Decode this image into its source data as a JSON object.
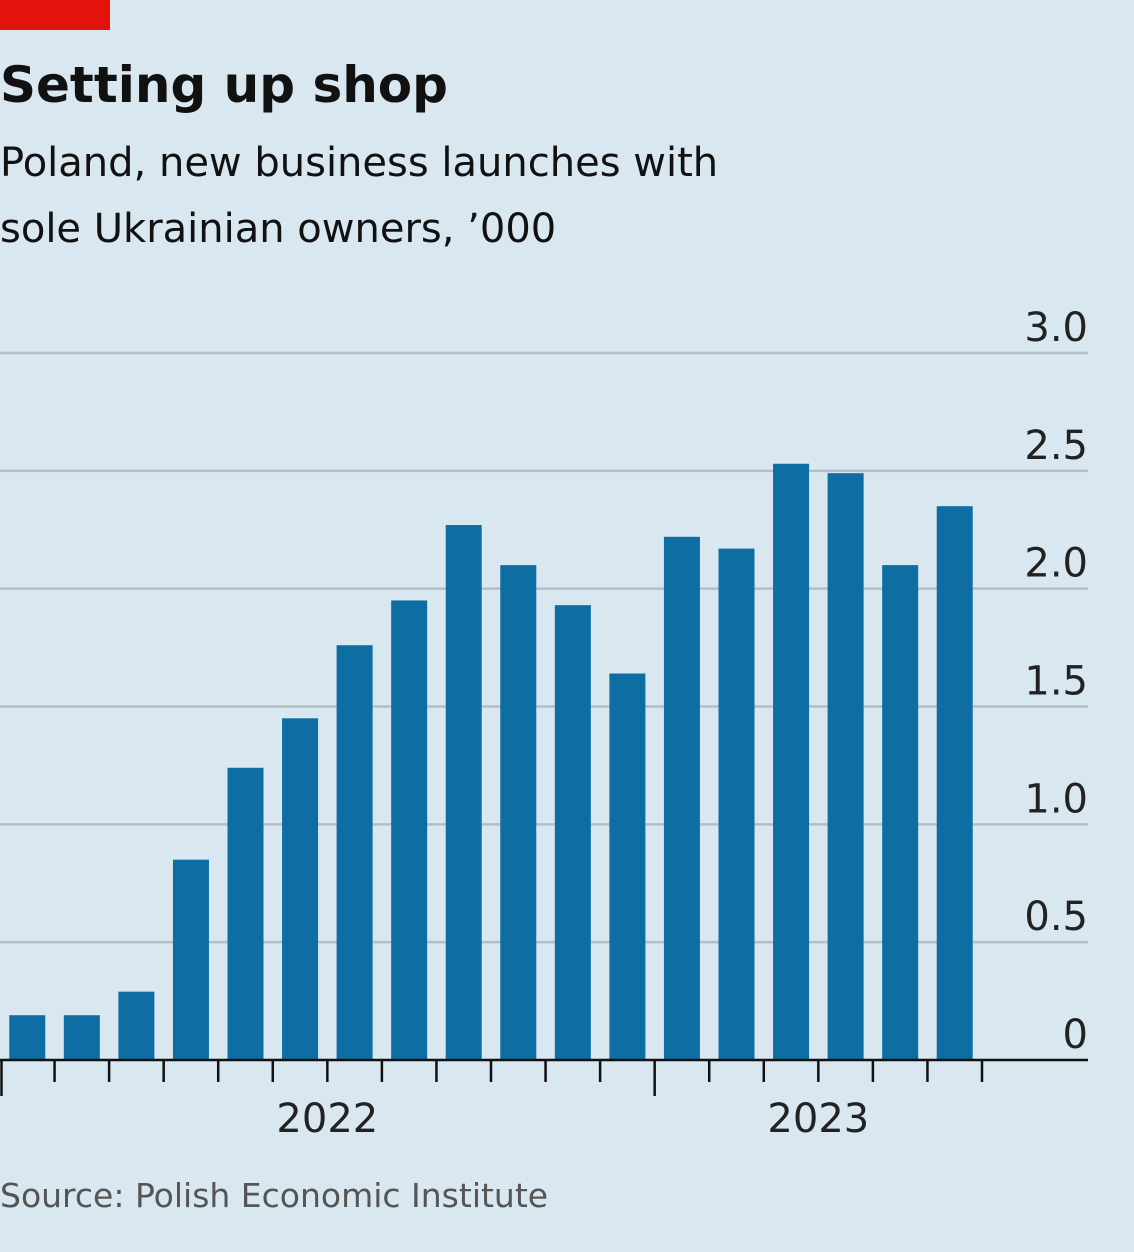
{
  "chart_data": {
    "type": "bar",
    "title": "Setting up shop",
    "subtitle": [
      "Poland, new business launches with",
      "sole Ukrainian owners, ’000"
    ],
    "source": "Source: Polish Economic Institute",
    "categories": [
      null,
      null,
      null,
      null,
      null,
      null,
      null,
      null,
      null,
      null,
      null,
      null,
      null,
      null,
      null,
      null,
      null,
      null
    ],
    "year_labels": [
      "2022",
      "2023"
    ],
    "values": [
      0.19,
      0.19,
      0.29,
      0.85,
      1.24,
      1.45,
      1.76,
      1.95,
      2.27,
      2.1,
      1.93,
      1.64,
      2.22,
      2.17,
      2.53,
      2.49,
      2.1,
      2.35
    ],
    "color": "#0e6ea3",
    "ylim": [
      0,
      3
    ],
    "yticks": [
      0,
      0.5,
      {
        "value": 1,
        "label": "1.0"
      },
      1.5,
      {
        "value": 2,
        "label": "2.0"
      },
      2.5,
      {
        "value": 3,
        "label": "3.0"
      }
    ],
    "grid": true
  }
}
